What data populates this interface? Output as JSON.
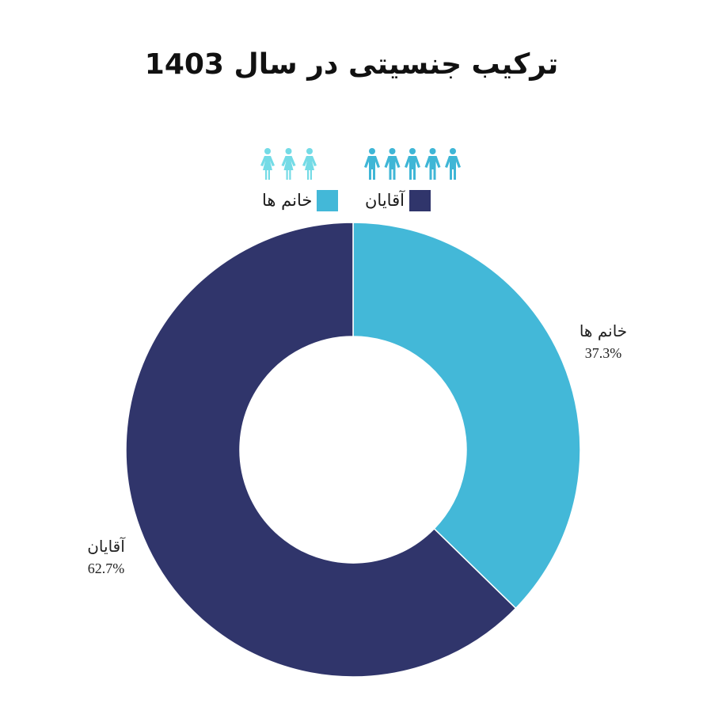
{
  "chart_data": {
    "type": "pie",
    "title": "ترکیب جنسیتی در سال 1403",
    "donut": true,
    "slices": [
      {
        "label": "خانم ها",
        "value": 37.3,
        "value_label": "37.3%",
        "color": "#43b8d8"
      },
      {
        "label": "آقایان",
        "value": 62.7,
        "value_label": "62.7%",
        "color": "#30356b"
      }
    ],
    "legend": {
      "placement": "top-center",
      "items": [
        {
          "label": "آقایان",
          "color": "#30356b",
          "icon": "male-figures-icon",
          "icon_count": 5,
          "icon_color": "#3fb6d6"
        },
        {
          "label": "خانم ها",
          "color": "#43b8d8",
          "icon": "female-figures-icon",
          "icon_count": 3,
          "icon_color": "#74dbe6"
        }
      ]
    }
  }
}
